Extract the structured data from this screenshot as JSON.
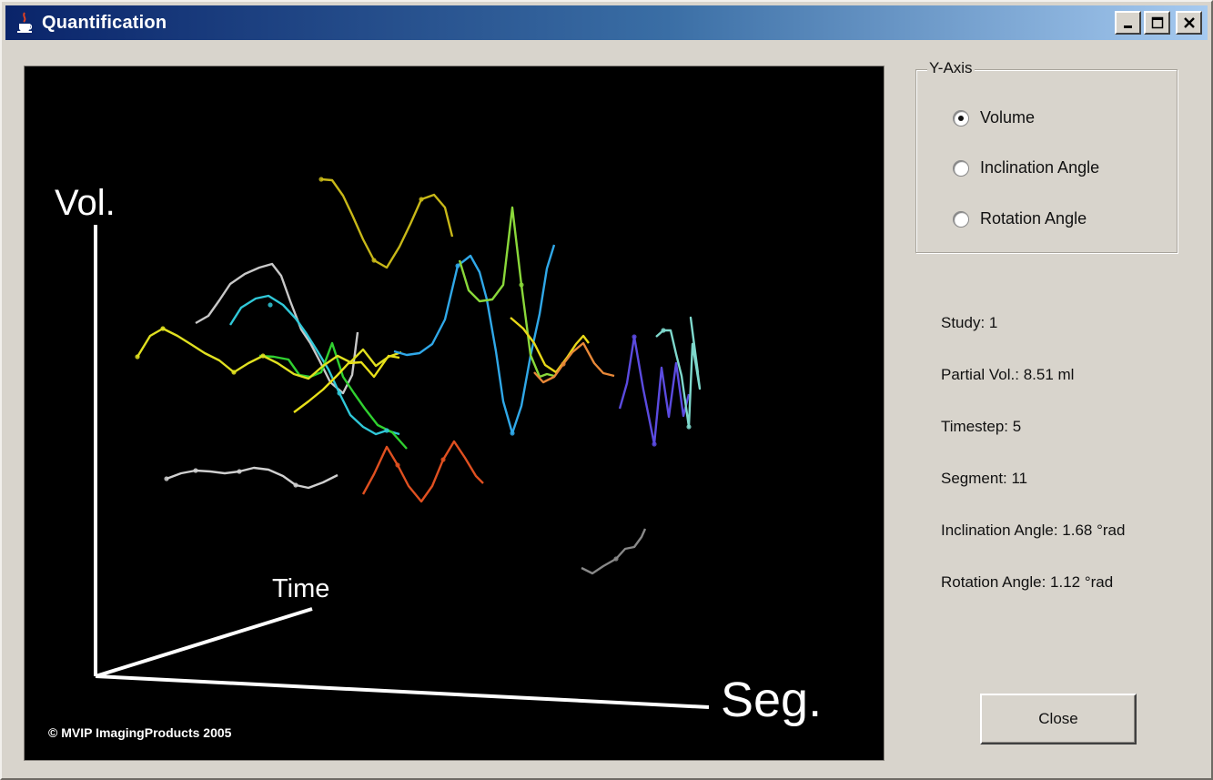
{
  "window": {
    "title": "Quantification",
    "app_icon": "java-cup-icon",
    "controls": [
      "minimize-icon",
      "maximize-icon",
      "close-icon"
    ]
  },
  "plot": {
    "vertical_axis_label": "Vol.",
    "depth_axis_label": "Time",
    "horizontal_axis_label": "Seg.",
    "copyright": "© MVIP ImagingProducts 2005",
    "background": "#000000",
    "axis_color": "#ffffff"
  },
  "y_axis": {
    "title": "Y-Axis",
    "options": [
      {
        "label": "Volume",
        "selected": true
      },
      {
        "label": "Inclination Angle",
        "selected": false
      },
      {
        "label": "Rotation Angle",
        "selected": false
      }
    ]
  },
  "info": {
    "study": "Study: 1",
    "partial_vol": "Partial Vol.: 8.51 ml",
    "timestep": "Timestep: 5",
    "segment": "Segment: 11",
    "inclination": "Inclination Angle: 1.68 °rad",
    "rotation": "Rotation Angle: 1.12 °rad"
  },
  "buttons": {
    "close": "Close"
  },
  "colors": {
    "title_gradient_start": "#0a246a",
    "title_gradient_end": "#a6caf0",
    "window_face": "#d8d4cc"
  }
}
